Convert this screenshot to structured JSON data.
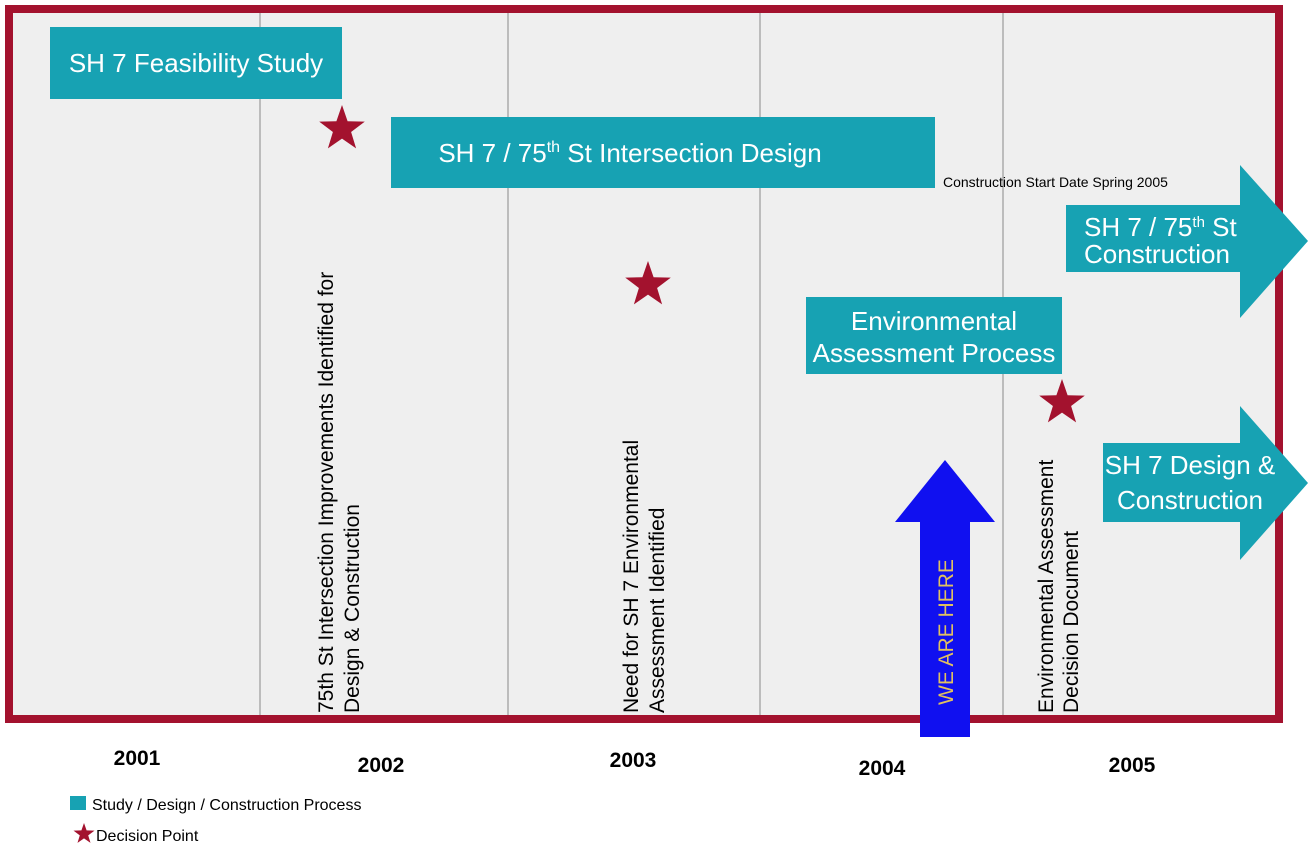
{
  "timeline": {
    "years": [
      "2001",
      "2002",
      "2003",
      "2004",
      "2005"
    ],
    "bars": {
      "feasibility": "SH 7 Feasibility Study",
      "intersection": {
        "text": "SH 7 / 75",
        "sup": "th",
        "rest": " St  Intersection Design"
      },
      "environmental": [
        "Environmental",
        "Assessment Process"
      ]
    },
    "arrows": {
      "construction": {
        "line1": {
          "text": "SH 7 / 75",
          "sup": "th",
          "rest": " St"
        },
        "line2": "Construction"
      },
      "design_construction": [
        "SH 7 Design &",
        "Construction"
      ]
    },
    "note": "Construction Start Date Spring 2005",
    "decisions": [
      [
        "75th St Intersection Improvements Identified for",
        "Design & Construction"
      ],
      [
        "Need for SH 7 Environmental",
        "Assessment Identified"
      ],
      [
        "Environmental Assessment",
        "Decision Document"
      ]
    ],
    "we_are_here": "WE ARE HERE"
  },
  "legend": {
    "process": "Study / Design / Construction Process",
    "decision": "Decision Point"
  }
}
